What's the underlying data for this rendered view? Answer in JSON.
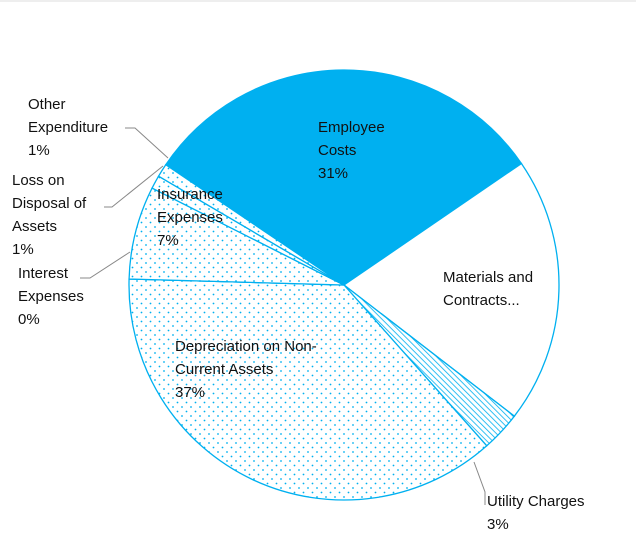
{
  "chart_data": {
    "type": "pie",
    "categories": [
      "Employee Costs",
      "Materials and Contracts...",
      "Utility Charges",
      "Depreciation on Non-Current Assets",
      "Interest Expenses",
      "Insurance Expenses",
      "Loss on Disposal of Assets",
      "Other Expenditure"
    ],
    "values": [
      31,
      20,
      3,
      37,
      0,
      7,
      1,
      1
    ],
    "value_labels": [
      "31%",
      null,
      "3%",
      "37%",
      "0%",
      "7%",
      "1%",
      "1%"
    ],
    "colors": [
      "#00b0f0",
      "#ffffff",
      "#00b0f0",
      "#00b0f0",
      "#00b0f0",
      "#00b0f0",
      "#00b0f0",
      "#00b0f0"
    ]
  }
}
